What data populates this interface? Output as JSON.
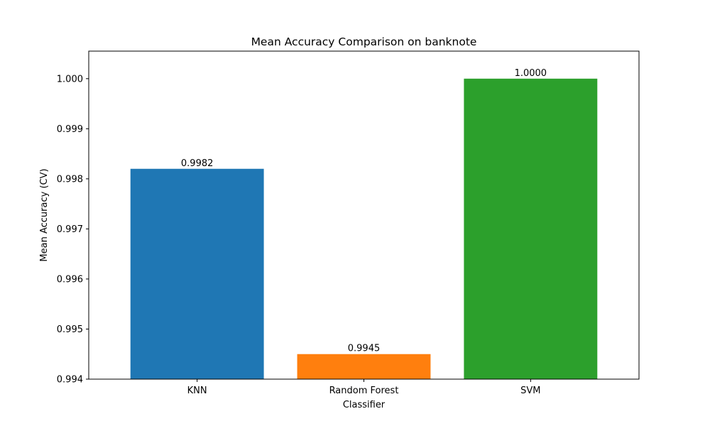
{
  "chart_data": {
    "type": "bar",
    "title": "Mean Accuracy Comparison on banknote",
    "xlabel": "Classifier",
    "ylabel": "Mean Accuracy (CV)",
    "categories": [
      "KNN",
      "Random Forest",
      "SVM"
    ],
    "values": [
      0.9982,
      0.9945,
      1.0
    ],
    "value_labels": [
      "0.9982",
      "0.9945",
      "1.0000"
    ],
    "colors": [
      "#1f77b4",
      "#ff7f0e",
      "#2ca02c"
    ],
    "ylim": [
      0.994,
      1.00055
    ],
    "yticks": [
      0.994,
      0.995,
      0.996,
      0.997,
      0.998,
      0.999,
      1.0
    ],
    "ytick_labels": [
      "0.994",
      "0.995",
      "0.996",
      "0.997",
      "0.998",
      "0.999",
      "1.000"
    ],
    "grid": false,
    "legend": "none"
  }
}
